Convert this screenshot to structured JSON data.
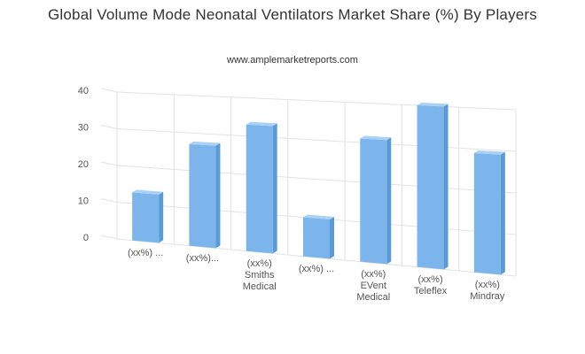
{
  "chart_data": {
    "type": "bar",
    "title": "Global Volume Mode Neonatal Ventilators Market Share (%) By Players",
    "subtitle": "www.amplemarketreports.com",
    "xlabel": "",
    "ylabel": "",
    "ylim": [
      0,
      40
    ],
    "yticks": [
      "40",
      "30",
      "20",
      "10",
      "0"
    ],
    "grid": true,
    "legend": "none",
    "categories": [
      [
        "(xx%) ..."
      ],
      [
        "(xx%)..."
      ],
      [
        "(xx%)",
        "Smiths",
        "Medical"
      ],
      [
        "(xx%) ..."
      ],
      [
        "(xx%)",
        "EVent",
        "Medical"
      ],
      [
        "(xx%)",
        "Teleflex"
      ],
      [
        "(xx%)",
        "Mindray"
      ]
    ],
    "values": [
      13,
      27,
      33,
      10,
      31,
      40,
      29
    ],
    "colors": {
      "bar_front": "#7cb5ec",
      "bar_side": "#5b9bd5",
      "bar_top": "#a9d1f7",
      "grid": "#e2e2e2"
    }
  }
}
